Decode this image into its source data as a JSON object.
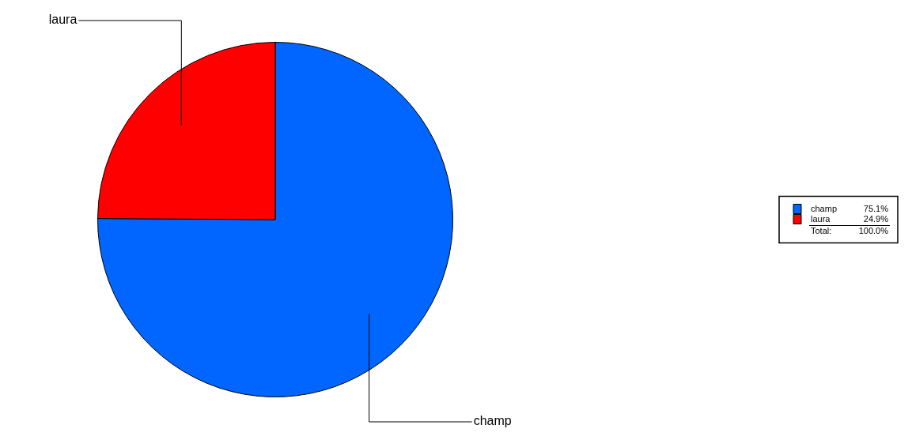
{
  "chart_data": {
    "type": "pie",
    "categories": [
      "champ",
      "laura"
    ],
    "values": [
      75.1,
      24.9
    ],
    "colors": [
      "#0066ff",
      "#ff0000"
    ],
    "value_labels": [
      "75.1%",
      "24.9%"
    ],
    "legend": "right",
    "annotations": [
      "Total:",
      "100.0%"
    ]
  }
}
